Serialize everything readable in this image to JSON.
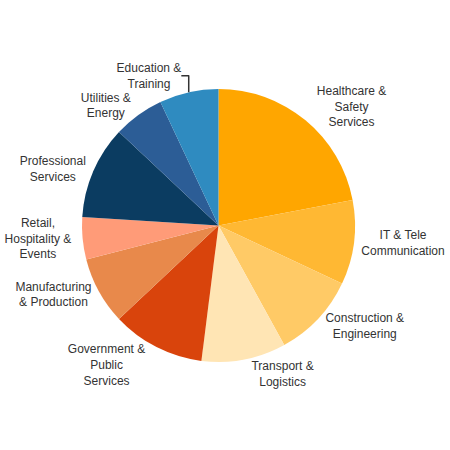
{
  "chart_data": {
    "type": "pie",
    "categories": [
      "Healthcare & Safety Services",
      "IT & Tele Communication",
      "Construction & Engineering",
      "Transport & Logistics",
      "Government & Public Services",
      "Manufacturing & Production",
      "Retail, Hospitality & Events",
      "Professional Services",
      "Utilities & Energy",
      "Education & Training"
    ],
    "values": [
      22,
      10,
      10,
      10,
      11,
      8,
      5,
      11,
      6,
      7
    ],
    "colors": [
      "#ffa600",
      "#ffb833",
      "#ffca66",
      "#ffe5b4",
      "#d9440c",
      "#e8894b",
      "#ff9b78",
      "#0b3c61",
      "#2c5d96",
      "#2f8bc0"
    ]
  }
}
